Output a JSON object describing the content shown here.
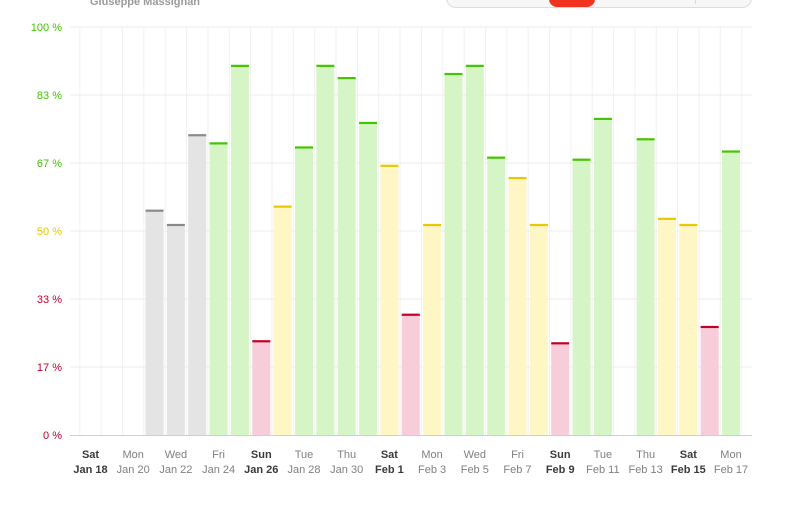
{
  "header": {
    "name": "Giuseppe Massignan"
  },
  "colors": {
    "good": "#43c500",
    "good_fill": "#d6f5c6",
    "ok": "#e8c800",
    "ok_fill": "#fff6c6",
    "bad": "#c40029",
    "bad_fill": "#f6cdd8",
    "none": "#8a8a8a",
    "none_fill": "#e4e4e4"
  },
  "chart_data": {
    "type": "bar",
    "ylim": [
      0,
      100
    ],
    "yticks": [
      {
        "value": 0,
        "label": "0 %",
        "level": "bad"
      },
      {
        "value": 16.67,
        "label": "17 %",
        "level": "bad"
      },
      {
        "value": 33.33,
        "label": "33 %",
        "level": "bad"
      },
      {
        "value": 50,
        "label": "50 %",
        "level": "ok"
      },
      {
        "value": 66.67,
        "label": "67 %",
        "level": "good"
      },
      {
        "value": 83.33,
        "label": "83 %",
        "level": "good"
      },
      {
        "value": 100,
        "label": "100 %",
        "level": "good"
      }
    ],
    "bars": [
      {
        "date": "Jan 18",
        "value": null,
        "level": "none"
      },
      {
        "date": "Jan 19",
        "value": null,
        "level": "none"
      },
      {
        "date": "Jan 20",
        "value": null,
        "level": "none"
      },
      {
        "date": "Jan 21",
        "value": 55,
        "level": "none"
      },
      {
        "date": "Jan 22",
        "value": 51.5,
        "level": "none"
      },
      {
        "date": "Jan 23",
        "value": 73.5,
        "level": "none"
      },
      {
        "date": "Jan 24",
        "value": 71.5,
        "level": "good"
      },
      {
        "date": "Jan 25",
        "value": 90.5,
        "level": "good"
      },
      {
        "date": "Jan 26",
        "value": 23,
        "level": "bad"
      },
      {
        "date": "Jan 27",
        "value": 56,
        "level": "ok"
      },
      {
        "date": "Jan 28",
        "value": 70.5,
        "level": "good"
      },
      {
        "date": "Jan 29",
        "value": 90.5,
        "level": "good"
      },
      {
        "date": "Jan 30",
        "value": 87.5,
        "level": "good"
      },
      {
        "date": "Jan 31",
        "value": 76.5,
        "level": "good"
      },
      {
        "date": "Feb 1",
        "value": 66,
        "level": "ok"
      },
      {
        "date": "Feb 2",
        "value": 29.5,
        "level": "bad"
      },
      {
        "date": "Feb 3",
        "value": 51.5,
        "level": "ok"
      },
      {
        "date": "Feb 4",
        "value": 88.5,
        "level": "good"
      },
      {
        "date": "Feb 5",
        "value": 90.5,
        "level": "good"
      },
      {
        "date": "Feb 6",
        "value": 68,
        "level": "good"
      },
      {
        "date": "Feb 7",
        "value": 63,
        "level": "ok"
      },
      {
        "date": "Feb 8",
        "value": 51.5,
        "level": "ok"
      },
      {
        "date": "Feb 9",
        "value": 22.5,
        "level": "bad"
      },
      {
        "date": "Feb 10",
        "value": 67.5,
        "level": "good"
      },
      {
        "date": "Feb 11",
        "value": 77.5,
        "level": "good"
      },
      {
        "date": "Feb 12",
        "value": null,
        "level": "none"
      },
      {
        "date": "Feb 13",
        "value": 72.5,
        "level": "good"
      },
      {
        "date": "Feb 14",
        "value": 53,
        "level": "ok"
      },
      {
        "date": "Feb 15",
        "value": 51.5,
        "level": "ok"
      },
      {
        "date": "Feb 16",
        "value": 26.5,
        "level": "bad"
      },
      {
        "date": "Feb 17",
        "value": 69.5,
        "level": "good"
      }
    ],
    "xlabels": [
      {
        "day": "Sat",
        "date": "Jan 18",
        "bold": true
      },
      {
        "day": "Mon",
        "date": "Jan 20",
        "bold": false
      },
      {
        "day": "Wed",
        "date": "Jan 22",
        "bold": false
      },
      {
        "day": "Fri",
        "date": "Jan 24",
        "bold": false
      },
      {
        "day": "Sun",
        "date": "Jan 26",
        "bold": true
      },
      {
        "day": "Tue",
        "date": "Jan 28",
        "bold": false
      },
      {
        "day": "Thu",
        "date": "Jan 30",
        "bold": false
      },
      {
        "day": "Sat",
        "date": "Feb 1",
        "bold": true
      },
      {
        "day": "Mon",
        "date": "Feb 3",
        "bold": false
      },
      {
        "day": "Wed",
        "date": "Feb 5",
        "bold": false
      },
      {
        "day": "Fri",
        "date": "Feb 7",
        "bold": false
      },
      {
        "day": "Sun",
        "date": "Feb 9",
        "bold": true
      },
      {
        "day": "Tue",
        "date": "Feb 11",
        "bold": false
      },
      {
        "day": "Thu",
        "date": "Feb 13",
        "bold": false
      },
      {
        "day": "Sat",
        "date": "Feb 15",
        "bold": true
      },
      {
        "day": "Mon",
        "date": "Feb 17",
        "bold": false
      }
    ]
  }
}
